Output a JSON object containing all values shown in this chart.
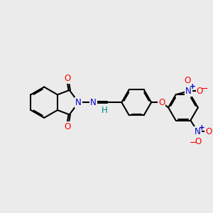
{
  "background_color": "#ebebeb",
  "bond_color": "#000000",
  "bond_lw": 1.5,
  "atom_colors": {
    "O": "#ff0000",
    "N": "#0000cd",
    "H": "#008080",
    "C": "#000000"
  },
  "font_size": 8.5,
  "plus_font_size": 7.5,
  "minus_font_size": 9.0
}
